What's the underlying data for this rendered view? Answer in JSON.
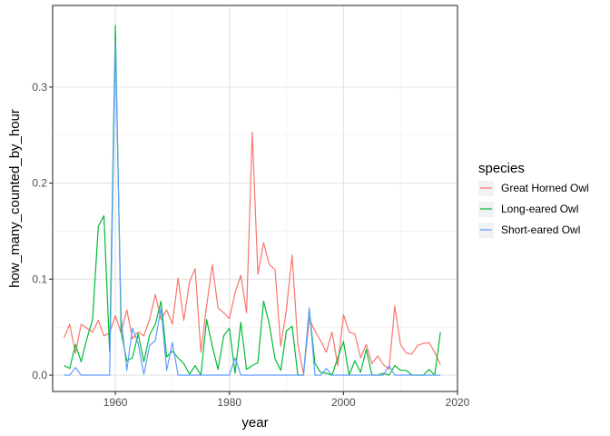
{
  "chart_data": {
    "type": "line",
    "xlabel": "year",
    "ylabel": "how_many_counted_by_hour",
    "xlim": [
      1949,
      2020
    ],
    "ylim": [
      -0.017,
      0.385
    ],
    "x_ticks": [
      1960,
      1980,
      2000,
      2020
    ],
    "y_ticks": [
      0.0,
      0.1,
      0.2,
      0.3
    ],
    "x_tick_labels": [
      "1960",
      "1980",
      "2000",
      "2020"
    ],
    "y_tick_labels": [
      "0.0",
      "0.1",
      "0.2",
      "0.3"
    ],
    "grid": true,
    "legend": {
      "title": "species",
      "position": "right"
    },
    "series": [
      {
        "name": "Great Horned Owl",
        "color": "#f8766d",
        "x": [
          1951,
          1952,
          1953,
          1954,
          1955,
          1956,
          1957,
          1958,
          1959,
          1960,
          1961,
          1962,
          1963,
          1964,
          1965,
          1966,
          1967,
          1968,
          1969,
          1970,
          1971,
          1972,
          1973,
          1974,
          1975,
          1976,
          1977,
          1978,
          1979,
          1980,
          1981,
          1982,
          1983,
          1984,
          1985,
          1986,
          1987,
          1988,
          1989,
          1990,
          1991,
          1992,
          1993,
          1994,
          1995,
          1996,
          1997,
          1998,
          1999,
          2000,
          2001,
          2002,
          2003,
          2004,
          2005,
          2006,
          2007,
          2008,
          2009,
          2010,
          2011,
          2012,
          2013,
          2014,
          2015,
          2016,
          2017
        ],
        "values": [
          0.039,
          0.053,
          0.023,
          0.053,
          0.049,
          0.045,
          0.057,
          0.041,
          0.044,
          0.062,
          0.044,
          0.068,
          0.038,
          0.045,
          0.041,
          0.058,
          0.084,
          0.058,
          0.068,
          0.053,
          0.101,
          0.057,
          0.097,
          0.111,
          0.024,
          0.072,
          0.115,
          0.07,
          0.065,
          0.059,
          0.086,
          0.104,
          0.065,
          0.253,
          0.105,
          0.138,
          0.115,
          0.11,
          0.03,
          0.068,
          0.125,
          0.033,
          0.001,
          0.059,
          0.046,
          0.036,
          0.024,
          0.045,
          0.01,
          0.063,
          0.045,
          0.043,
          0.018,
          0.032,
          0.012,
          0.02,
          0.011,
          0.006,
          0.072,
          0.032,
          0.023,
          0.022,
          0.031,
          0.033,
          0.034,
          0.024,
          0.011
        ]
      },
      {
        "name": "Long-eared Owl",
        "color": "#00ba38",
        "x": [
          1951,
          1952,
          1953,
          1954,
          1955,
          1956,
          1957,
          1958,
          1959,
          1960,
          1961,
          1962,
          1963,
          1964,
          1965,
          1966,
          1967,
          1968,
          1969,
          1970,
          1971,
          1972,
          1973,
          1974,
          1975,
          1976,
          1977,
          1978,
          1979,
          1980,
          1981,
          1982,
          1983,
          1984,
          1985,
          1986,
          1987,
          1988,
          1989,
          1990,
          1991,
          1992,
          1993,
          1994,
          1995,
          1996,
          1997,
          1998,
          1999,
          2000,
          2001,
          2002,
          2003,
          2004,
          2005,
          2006,
          2007,
          2008,
          2009,
          2010,
          2011,
          2012,
          2013,
          2014,
          2015,
          2016,
          2017
        ],
        "values": [
          0.01,
          0.007,
          0.032,
          0.014,
          0.038,
          0.058,
          0.155,
          0.166,
          0.024,
          0.364,
          0.045,
          0.015,
          0.018,
          0.043,
          0.014,
          0.042,
          0.053,
          0.077,
          0.019,
          0.025,
          0.018,
          0.012,
          0.001,
          0.01,
          0.0,
          0.058,
          0.03,
          0.006,
          0.041,
          0.049,
          0.002,
          0.055,
          0.006,
          0.01,
          0.013,
          0.077,
          0.053,
          0.017,
          0.005,
          0.046,
          0.051,
          0.0,
          0.0,
          0.069,
          0.012,
          0.003,
          0.002,
          0.0,
          0.018,
          0.035,
          0.0,
          0.015,
          0.003,
          0.027,
          0.0,
          0.0,
          0.002,
          0.0,
          0.01,
          0.005,
          0.005,
          0.0,
          0.0,
          0.0,
          0.006,
          0.0,
          0.045
        ]
      },
      {
        "name": "Short-eared Owl",
        "color": "#619cff",
        "x": [
          1951,
          1952,
          1953,
          1954,
          1955,
          1956,
          1957,
          1958,
          1959,
          1960,
          1961,
          1962,
          1963,
          1964,
          1965,
          1966,
          1967,
          1968,
          1969,
          1970,
          1971,
          1972,
          1973,
          1974,
          1975,
          1976,
          1977,
          1978,
          1979,
          1980,
          1981,
          1982,
          1983,
          1984,
          1985,
          1986,
          1987,
          1988,
          1989,
          1990,
          1991,
          1992,
          1993,
          1994,
          1995,
          1996,
          1997,
          1998,
          1999,
          2000,
          2001,
          2002,
          2003,
          2004,
          2005,
          2006,
          2007,
          2008,
          2009,
          2010,
          2011,
          2012,
          2013,
          2014,
          2015,
          2016,
          2017
        ],
        "values": [
          0.0,
          0.0,
          0.008,
          0.0,
          0.0,
          0.0,
          0.0,
          0.0,
          0.0,
          0.347,
          0.06,
          0.005,
          0.049,
          0.033,
          0.001,
          0.031,
          0.036,
          0.07,
          0.005,
          0.034,
          0.0,
          0.0,
          0.0,
          0.0,
          0.0,
          0.0,
          0.0,
          0.0,
          0.0,
          0.0,
          0.018,
          0.0,
          0.0,
          0.0,
          0.0,
          0.0,
          0.0,
          0.0,
          0.0,
          0.0,
          0.0,
          0.0,
          0.0,
          0.07,
          0.0,
          0.0,
          0.007,
          0.0,
          0.0,
          0.0,
          0.0,
          0.0,
          0.0,
          0.0,
          0.0,
          0.0,
          0.0,
          0.01,
          0.0,
          0.0,
          0.0,
          0.0,
          0.0,
          0.0,
          0.0,
          0.0,
          0.0
        ]
      }
    ]
  }
}
